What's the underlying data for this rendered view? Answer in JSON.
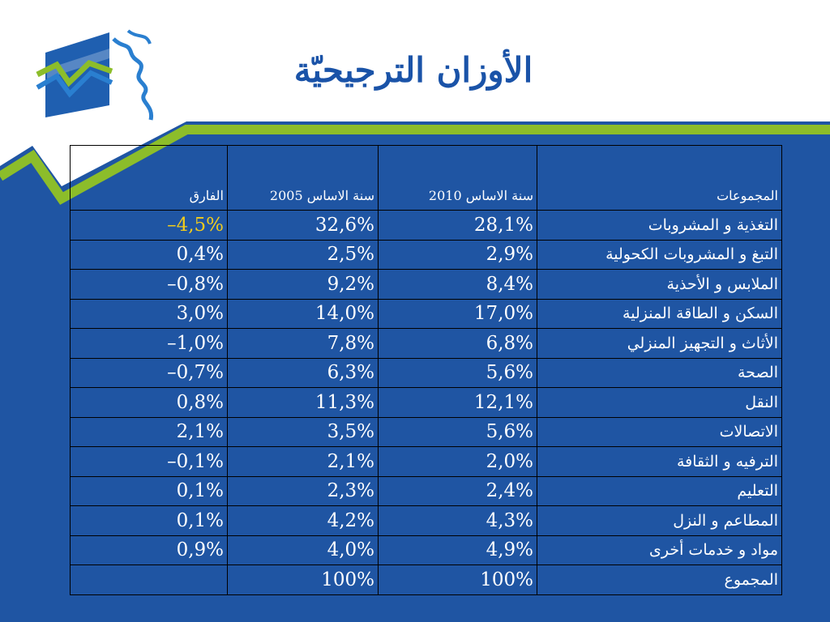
{
  "slide": {
    "title": "الأوزان الترجيحيّة",
    "colors": {
      "background_blue": "#1f55a3",
      "accent_green": "#8cbd2a",
      "title_blue": "#1a53a8",
      "highlight_yellow": "#f2cc1c",
      "text_white": "#ffffff"
    },
    "logo_icon": "institution-logo-icon"
  },
  "table": {
    "headers": {
      "groups": "المجموعات",
      "base_2010": "سنة الاساس 2010",
      "base_2005": "سنة الاساس 2005",
      "difference": "الفارق"
    },
    "rows": [
      {
        "group": "التغذية و المشروبات",
        "base_2010": "28,1%",
        "base_2005": "32,6%",
        "difference": "–4,5%"
      },
      {
        "group": "التبغ و المشروبات الكحولية",
        "base_2010": "2,9%",
        "base_2005": "2,5%",
        "difference": "0,4%"
      },
      {
        "group": "الملابس و الأحذية",
        "base_2010": "8,4%",
        "base_2005": "9,2%",
        "difference": "–0,8%"
      },
      {
        "group": "السكن و الطاقة المنزلية",
        "base_2010": "17,0%",
        "base_2005": "14,0%",
        "difference": "3,0%"
      },
      {
        "group": "الأثاث و التجهيز المنزلي",
        "base_2010": "6,8%",
        "base_2005": "7,8%",
        "difference": "–1,0%"
      },
      {
        "group": "الصحة",
        "base_2010": "5,6%",
        "base_2005": "6,3%",
        "difference": "–0,7%"
      },
      {
        "group": "النقل",
        "base_2010": "12,1%",
        "base_2005": "11,3%",
        "difference": "0,8%"
      },
      {
        "group": "الاتصالات",
        "base_2010": "5,6%",
        "base_2005": "3,5%",
        "difference": "2,1%"
      },
      {
        "group": "الترفيه و الثقافة",
        "base_2010": "2,0%",
        "base_2005": "2,1%",
        "difference": "–0,1%"
      },
      {
        "group": "التعليم",
        "base_2010": "2,4%",
        "base_2005": "2,3%",
        "difference": "0,1%"
      },
      {
        "group": "المطاعم و النزل",
        "base_2010": "4,3%",
        "base_2005": "4,2%",
        "difference": "0,1%"
      },
      {
        "group": "مواد و خدمات أخرى",
        "base_2010": "4,9%",
        "base_2005": "4,0%",
        "difference": "0,9%"
      },
      {
        "group": "المجموع",
        "base_2010": "100%",
        "base_2005": "100%",
        "difference": ""
      }
    ]
  }
}
